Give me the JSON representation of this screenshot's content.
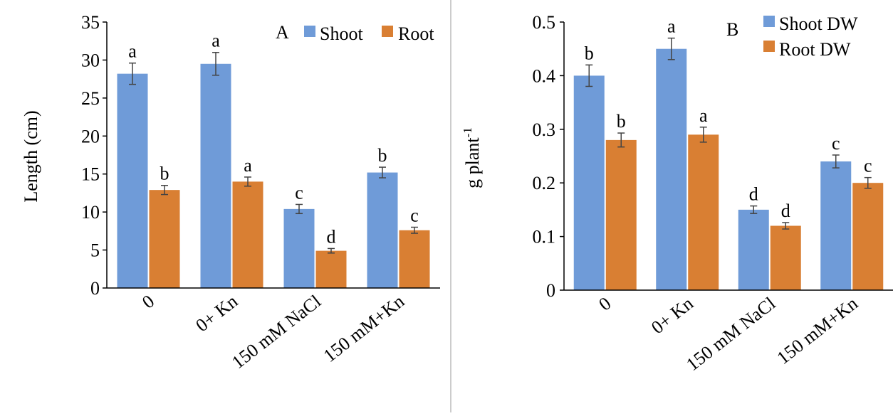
{
  "colors": {
    "shoot": "#6f9bd8",
    "root": "#d97f33",
    "axis": "#000000",
    "divider": "#cccccc"
  },
  "chart_data": [
    {
      "type": "bar",
      "panel_label": "A",
      "title": "",
      "xlabel": "",
      "ylabel": "Length (cm)",
      "ylim": [
        0,
        35
      ],
      "yticks": [
        "0",
        "5",
        "10",
        "15",
        "20",
        "25",
        "30",
        "35"
      ],
      "categories": [
        "0",
        "0+ Kn",
        "150 mM NaCl",
        "150 mM+Kn"
      ],
      "legend_position": "top-right",
      "grid": false,
      "series": [
        {
          "name": "Shoot",
          "values": [
            28.2,
            29.5,
            10.4,
            15.2
          ],
          "errors": [
            1.4,
            1.5,
            0.6,
            0.7
          ],
          "letters": [
            "a",
            "a",
            "c",
            "b"
          ]
        },
        {
          "name": "Root",
          "values": [
            12.9,
            14.0,
            4.9,
            7.6
          ],
          "errors": [
            0.6,
            0.6,
            0.3,
            0.4
          ],
          "letters": [
            "b",
            "a",
            "d",
            "c"
          ]
        }
      ]
    },
    {
      "type": "bar",
      "panel_label": "B",
      "title": "",
      "xlabel": "",
      "ylabel": "g plant",
      "ylabel_superscript": "-1",
      "ylim": [
        0,
        0.5
      ],
      "yticks": [
        "0",
        "0.1",
        "0.2",
        "0.3",
        "0.4",
        "0.5"
      ],
      "categories": [
        "0",
        "0+ Kn",
        "150 mM NaCl",
        "150 mM+Kn"
      ],
      "legend_position": "top-right",
      "grid": false,
      "series": [
        {
          "name": "Shoot DW",
          "values": [
            0.4,
            0.45,
            0.15,
            0.24
          ],
          "errors": [
            0.02,
            0.02,
            0.007,
            0.012
          ],
          "letters": [
            "b",
            "a",
            "d",
            "c"
          ]
        },
        {
          "name": "Root DW",
          "values": [
            0.28,
            0.29,
            0.12,
            0.2
          ],
          "errors": [
            0.013,
            0.014,
            0.006,
            0.01
          ],
          "letters": [
            "b",
            "a",
            "d",
            "c"
          ]
        }
      ]
    }
  ]
}
